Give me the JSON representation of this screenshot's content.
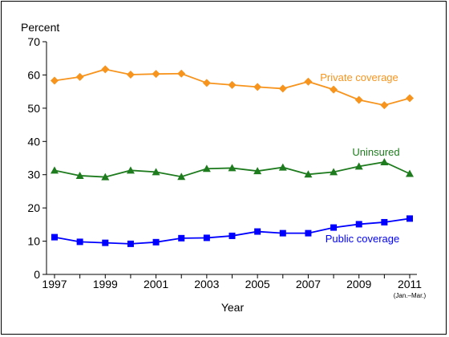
{
  "chart_data": {
    "type": "line",
    "ylabel": "Percent",
    "xlabel": "Year",
    "ylim": [
      0,
      70
    ],
    "yticks": [
      "0",
      "10",
      "20",
      "30",
      "40",
      "50",
      "60",
      "70"
    ],
    "xlim": [
      1997,
      2011
    ],
    "xticks": [
      "1997",
      "1999",
      "2001",
      "2003",
      "2005",
      "2007",
      "2009",
      "2011"
    ],
    "xtick_note": "(Jan.–Mar.)",
    "grid": false,
    "x": [
      1997,
      1998,
      1999,
      2000,
      2001,
      2002,
      2003,
      2004,
      2005,
      2006,
      2007,
      2008,
      2009,
      2010,
      2011
    ],
    "series": [
      {
        "name": "Private coverage",
        "color": "#f7941d",
        "marker": "diamond",
        "values": [
          58.3,
          59.4,
          61.7,
          60.1,
          60.3,
          60.4,
          57.6,
          57.0,
          56.4,
          55.9,
          58.0,
          55.6,
          52.5,
          50.9,
          53.0
        ]
      },
      {
        "name": "Uninsured",
        "color": "#1e7b1e",
        "marker": "triangle",
        "values": [
          31.3,
          29.7,
          29.3,
          31.3,
          30.8,
          29.4,
          31.8,
          32.0,
          31.1,
          32.2,
          30.1,
          30.8,
          32.5,
          33.8,
          30.3
        ]
      },
      {
        "name": "Public coverage",
        "color": "#0000ff",
        "marker": "square",
        "values": [
          11.2,
          9.8,
          9.5,
          9.2,
          9.7,
          10.9,
          11.0,
          11.6,
          12.9,
          12.4,
          12.4,
          14.1,
          15.1,
          15.7,
          16.8
        ]
      }
    ]
  }
}
